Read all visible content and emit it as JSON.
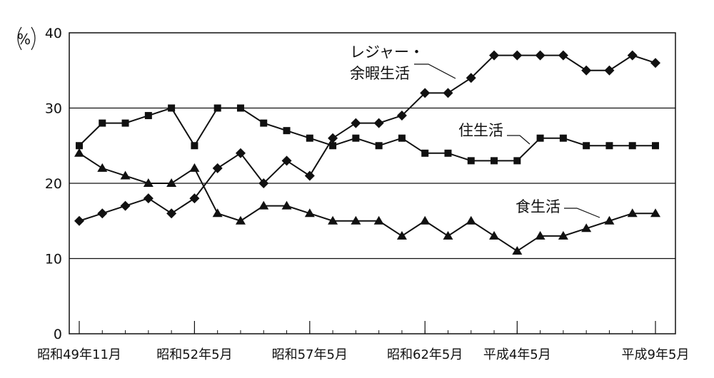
{
  "chart_data": {
    "type": "line",
    "ylabel": "%",
    "ylim": [
      0,
      40
    ],
    "yticks": [
      "0",
      "10",
      "20",
      "30",
      "40"
    ],
    "grid": true,
    "x_tick_labels": [
      "昭和49年11月",
      "昭和52年5月",
      "昭和57年5月",
      "昭和62年5月",
      "平成4年5月",
      "平成9年5月"
    ],
    "x_tick_index": [
      0,
      5,
      10,
      15,
      19,
      25
    ],
    "point_count": 26,
    "series": [
      {
        "name": "レジャー・余暇生活",
        "label_lines": [
          "レジャー・",
          "余暇生活"
        ],
        "marker": "diamond",
        "values": [
          15,
          16,
          17,
          18,
          16,
          18,
          22,
          24,
          20,
          23,
          21,
          26,
          28,
          28,
          29,
          32,
          32,
          34,
          37,
          37,
          37,
          37,
          35,
          35,
          37,
          36
        ]
      },
      {
        "name": "住生活",
        "label_lines": [
          "住生活"
        ],
        "marker": "square",
        "values": [
          25,
          28,
          28,
          29,
          30,
          25,
          30,
          30,
          28,
          27,
          26,
          25,
          26,
          25,
          26,
          24,
          24,
          23,
          23,
          23,
          26,
          26,
          25,
          25,
          25,
          25
        ]
      },
      {
        "name": "食生活",
        "label_lines": [
          "食生活"
        ],
        "marker": "triangle",
        "values": [
          24,
          22,
          21,
          20,
          20,
          22,
          16,
          15,
          17,
          17,
          16,
          15,
          15,
          15,
          13,
          15,
          13,
          15,
          13,
          11,
          13,
          13,
          14,
          15,
          16,
          16
        ]
      }
    ]
  }
}
